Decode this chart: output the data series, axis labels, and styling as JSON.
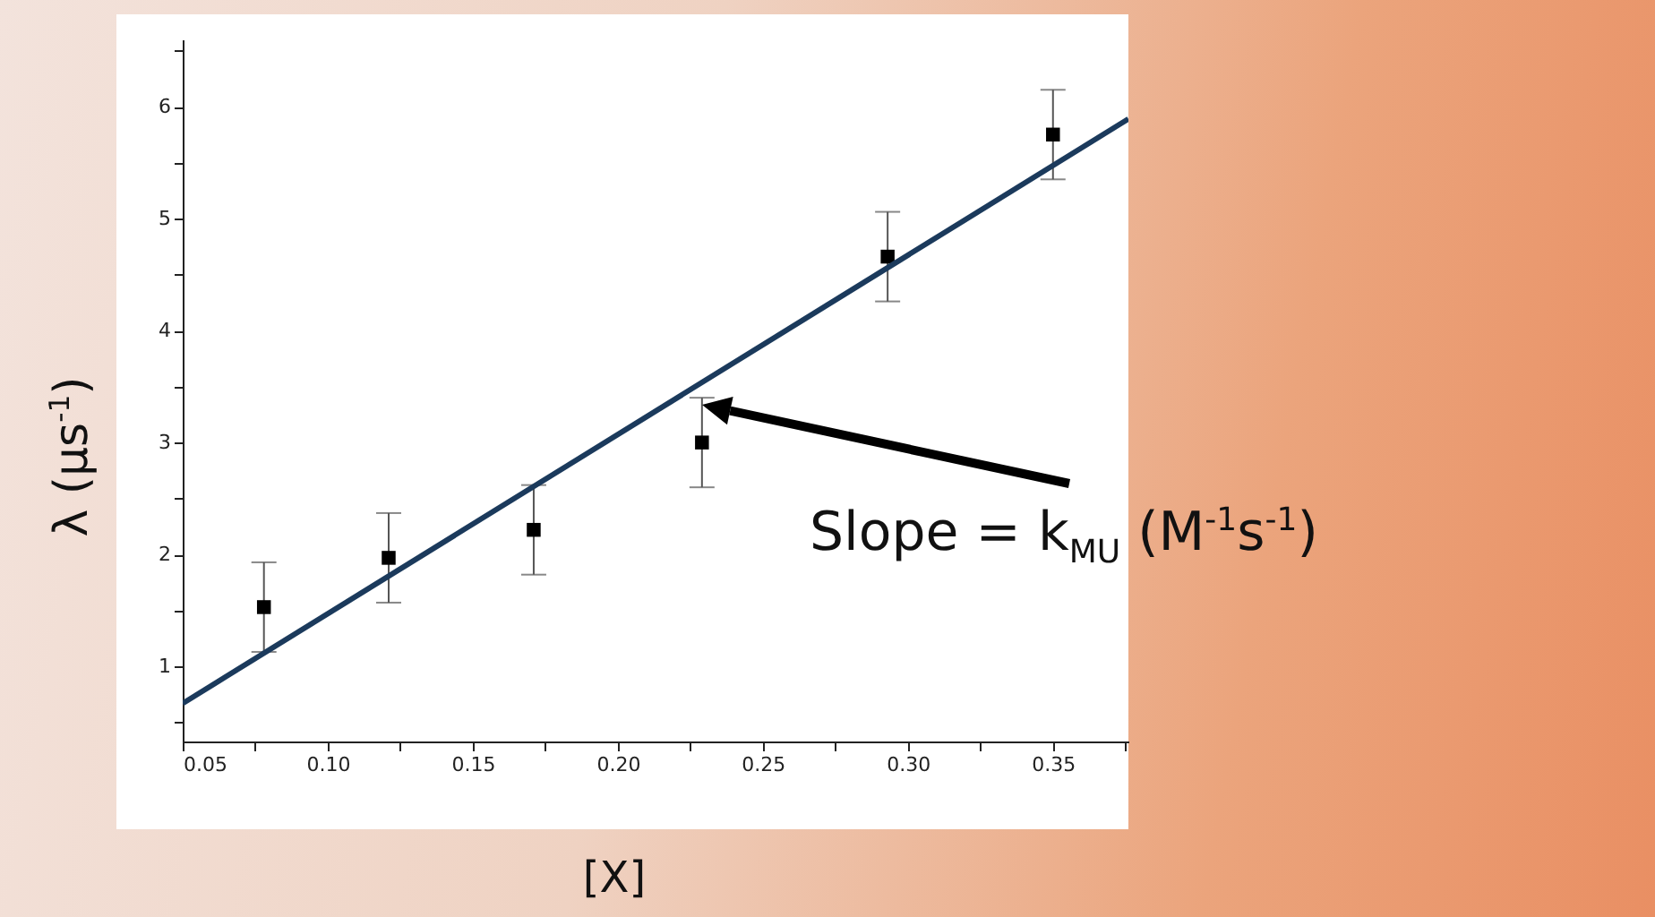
{
  "chart_data": {
    "type": "scatter",
    "xlabel": "[X]",
    "ylabel": "λ (µs$^{-1}$)",
    "annotations": [
      "Slope = k$_{MU}$ (M$^{-1}$s$^{-1}$)"
    ],
    "xlim": [
      0.05,
      0.376
    ],
    "ylim": [
      0.33,
      6.6
    ],
    "xticks": [
      {
        "value": 0.05,
        "label": "0.05"
      },
      {
        "value": 0.075,
        "label": null
      },
      {
        "value": 0.1,
        "label": "0.10"
      },
      {
        "value": 0.125,
        "label": null
      },
      {
        "value": 0.15,
        "label": "0.15"
      },
      {
        "value": 0.175,
        "label": null
      },
      {
        "value": 0.2,
        "label": "0.20"
      },
      {
        "value": 0.225,
        "label": null
      },
      {
        "value": 0.25,
        "label": "0.25"
      },
      {
        "value": 0.275,
        "label": null
      },
      {
        "value": 0.3,
        "label": "0.30"
      },
      {
        "value": 0.325,
        "label": null
      },
      {
        "value": 0.35,
        "label": "0.35"
      },
      {
        "value": 0.375,
        "label": null
      }
    ],
    "yticks": [
      {
        "value": 0.5,
        "label": null
      },
      1,
      {
        "value": 1.5,
        "label": null
      },
      2,
      {
        "value": 2.5,
        "label": null
      },
      3,
      {
        "value": 3.5,
        "label": null
      },
      4,
      {
        "value": 4.5,
        "label": null
      },
      5,
      {
        "value": 5.5,
        "label": null
      },
      6,
      {
        "value": 6.5,
        "label": null
      }
    ],
    "grid": false,
    "marker": "square",
    "series": [
      {
        "color": "#000000",
        "x": [
          0.078,
          0.121,
          0.171,
          0.229,
          0.293,
          0.35
        ],
        "values": [
          1.53,
          1.97,
          2.22,
          3.0,
          4.66,
          5.75
        ],
        "errors": [
          0.4,
          0.4,
          0.4,
          0.4,
          0.4,
          0.4
        ]
      },
      {
        "type": "line",
        "marker": "none",
        "color": "#1b3a5c",
        "x": [
          0.05,
          0.376
        ],
        "values": [
          0.67,
          5.89
        ]
      }
    ]
  }
}
